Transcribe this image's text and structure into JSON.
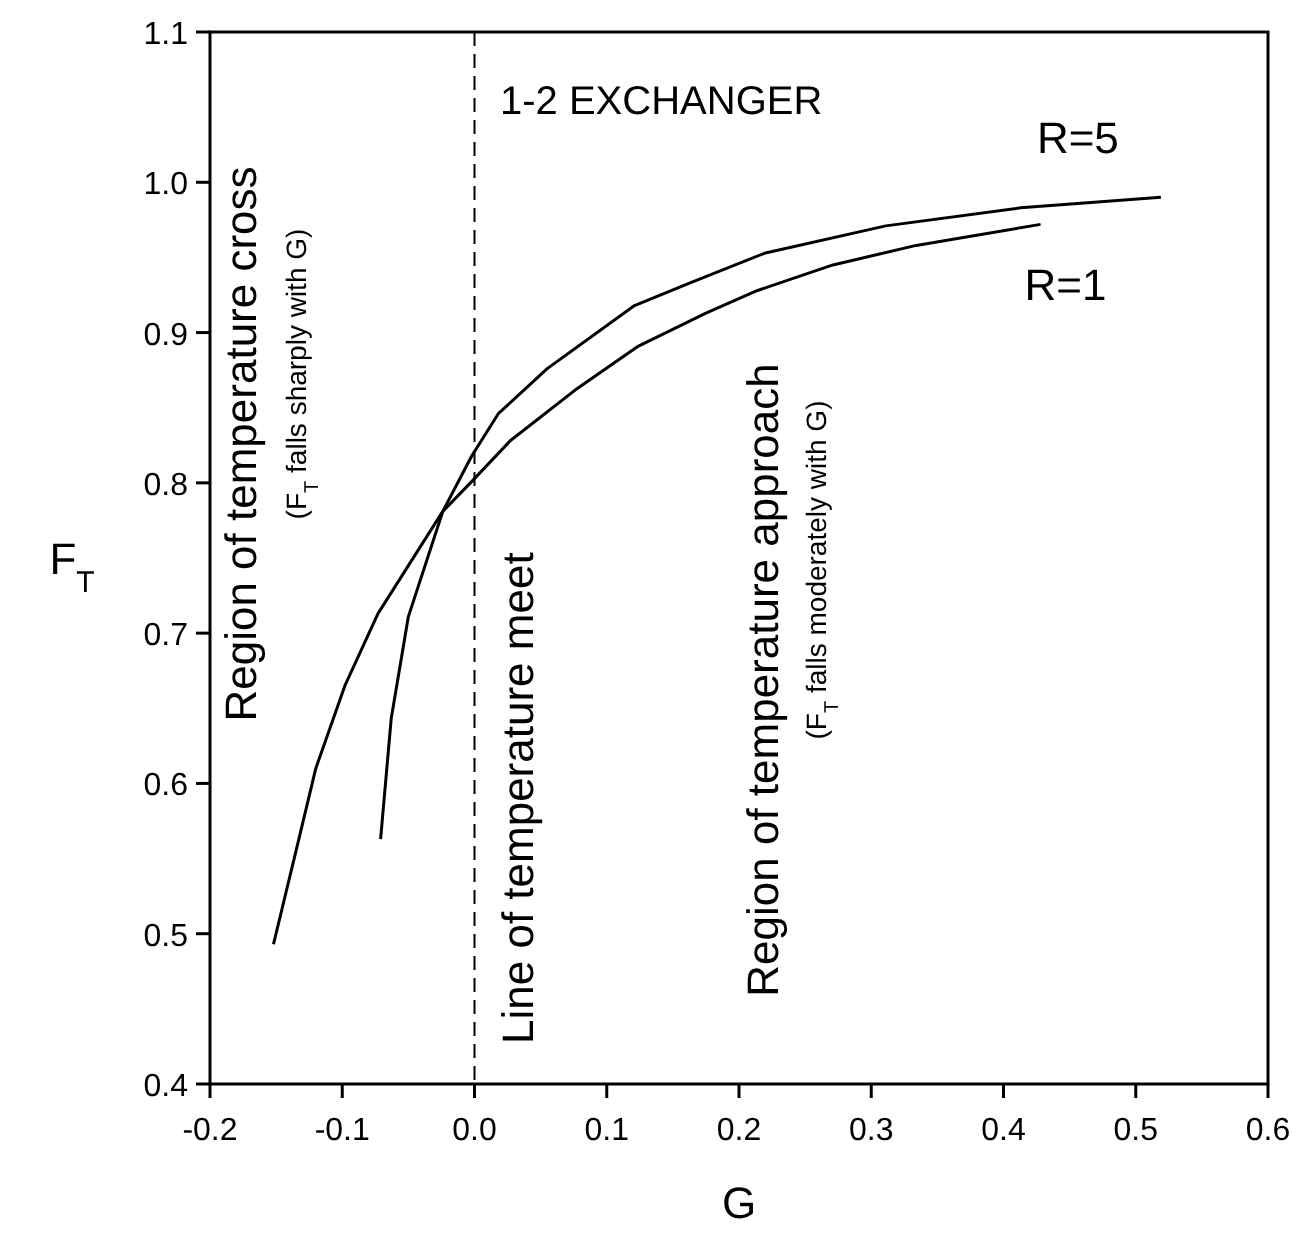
{
  "chart_data": {
    "type": "line",
    "xlabel": "G",
    "ylabel": "F$_{T}$",
    "xlim": [
      -0.2,
      0.6
    ],
    "ylim": [
      0.4,
      1.1
    ],
    "xticks": [
      {
        "value": -0.2,
        "label": "-0.2"
      },
      {
        "value": -0.1,
        "label": "-0.1"
      },
      {
        "value": 0,
        "label": "0.0"
      },
      0.1,
      0.2,
      0.3,
      0.4,
      0.5,
      0.6
    ],
    "yticks": [
      0.4,
      0.5,
      0.6,
      0.7,
      0.8,
      0.9,
      {
        "value": 1,
        "label": "1.0"
      },
      1.1
    ],
    "grid": false,
    "line_style": "solid",
    "marker": "none",
    "series": [
      {
        "name": "R=5",
        "color": "#000000",
        "x": [
          -0.071,
          -0.063,
          -0.05,
          -0.024,
          -0.002,
          0.018,
          0.055,
          0.121,
          0.163,
          0.22,
          0.311,
          0.413,
          0.519
        ],
        "values": [
          0.563,
          0.643,
          0.711,
          0.781,
          0.818,
          0.846,
          0.876,
          0.918,
          0.933,
          0.953,
          0.971,
          0.983,
          0.99
        ]
      },
      {
        "name": "R=1",
        "color": "#000000",
        "x": [
          -0.152,
          -0.135,
          -0.12,
          -0.098,
          -0.073,
          -0.024,
          -0.002,
          0.027,
          0.078,
          0.124,
          0.175,
          0.214,
          0.271,
          0.334,
          0.428
        ],
        "values": [
          0.493,
          0.555,
          0.61,
          0.665,
          0.713,
          0.781,
          0.801,
          0.828,
          0.863,
          0.891,
          0.913,
          0.928,
          0.945,
          0.958,
          0.972
        ]
      }
    ],
    "ref_lines": [
      {
        "axis": "x",
        "value": 0,
        "label": "Line of temperature meet",
        "line_style": "dashed",
        "color": "#000000"
      }
    ],
    "annotations": [
      "1-2 EXCHANGER",
      "Region of temperature cross",
      "(F$_{T}$ falls sharply with G)",
      "Region of temperature approach",
      "(F$_{T}$ falls moderately with G)"
    ]
  }
}
